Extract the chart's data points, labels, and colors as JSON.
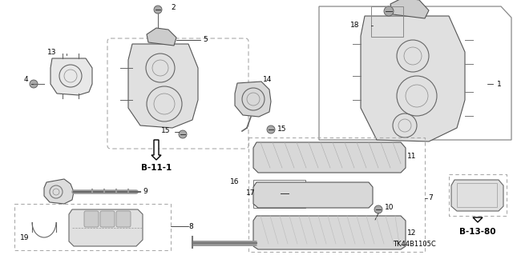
{
  "bg_color": "#ffffff",
  "fig_width": 6.4,
  "fig_height": 3.19,
  "dpi": 100,
  "text_color": "#000000",
  "part_color": "#444444",
  "label_fontsize": 6.5,
  "bold_label_fontsize": 7.5,
  "watermark": "TK44B1105C",
  "ref_b11": "B-11-1",
  "ref_b13": "B-13-80"
}
